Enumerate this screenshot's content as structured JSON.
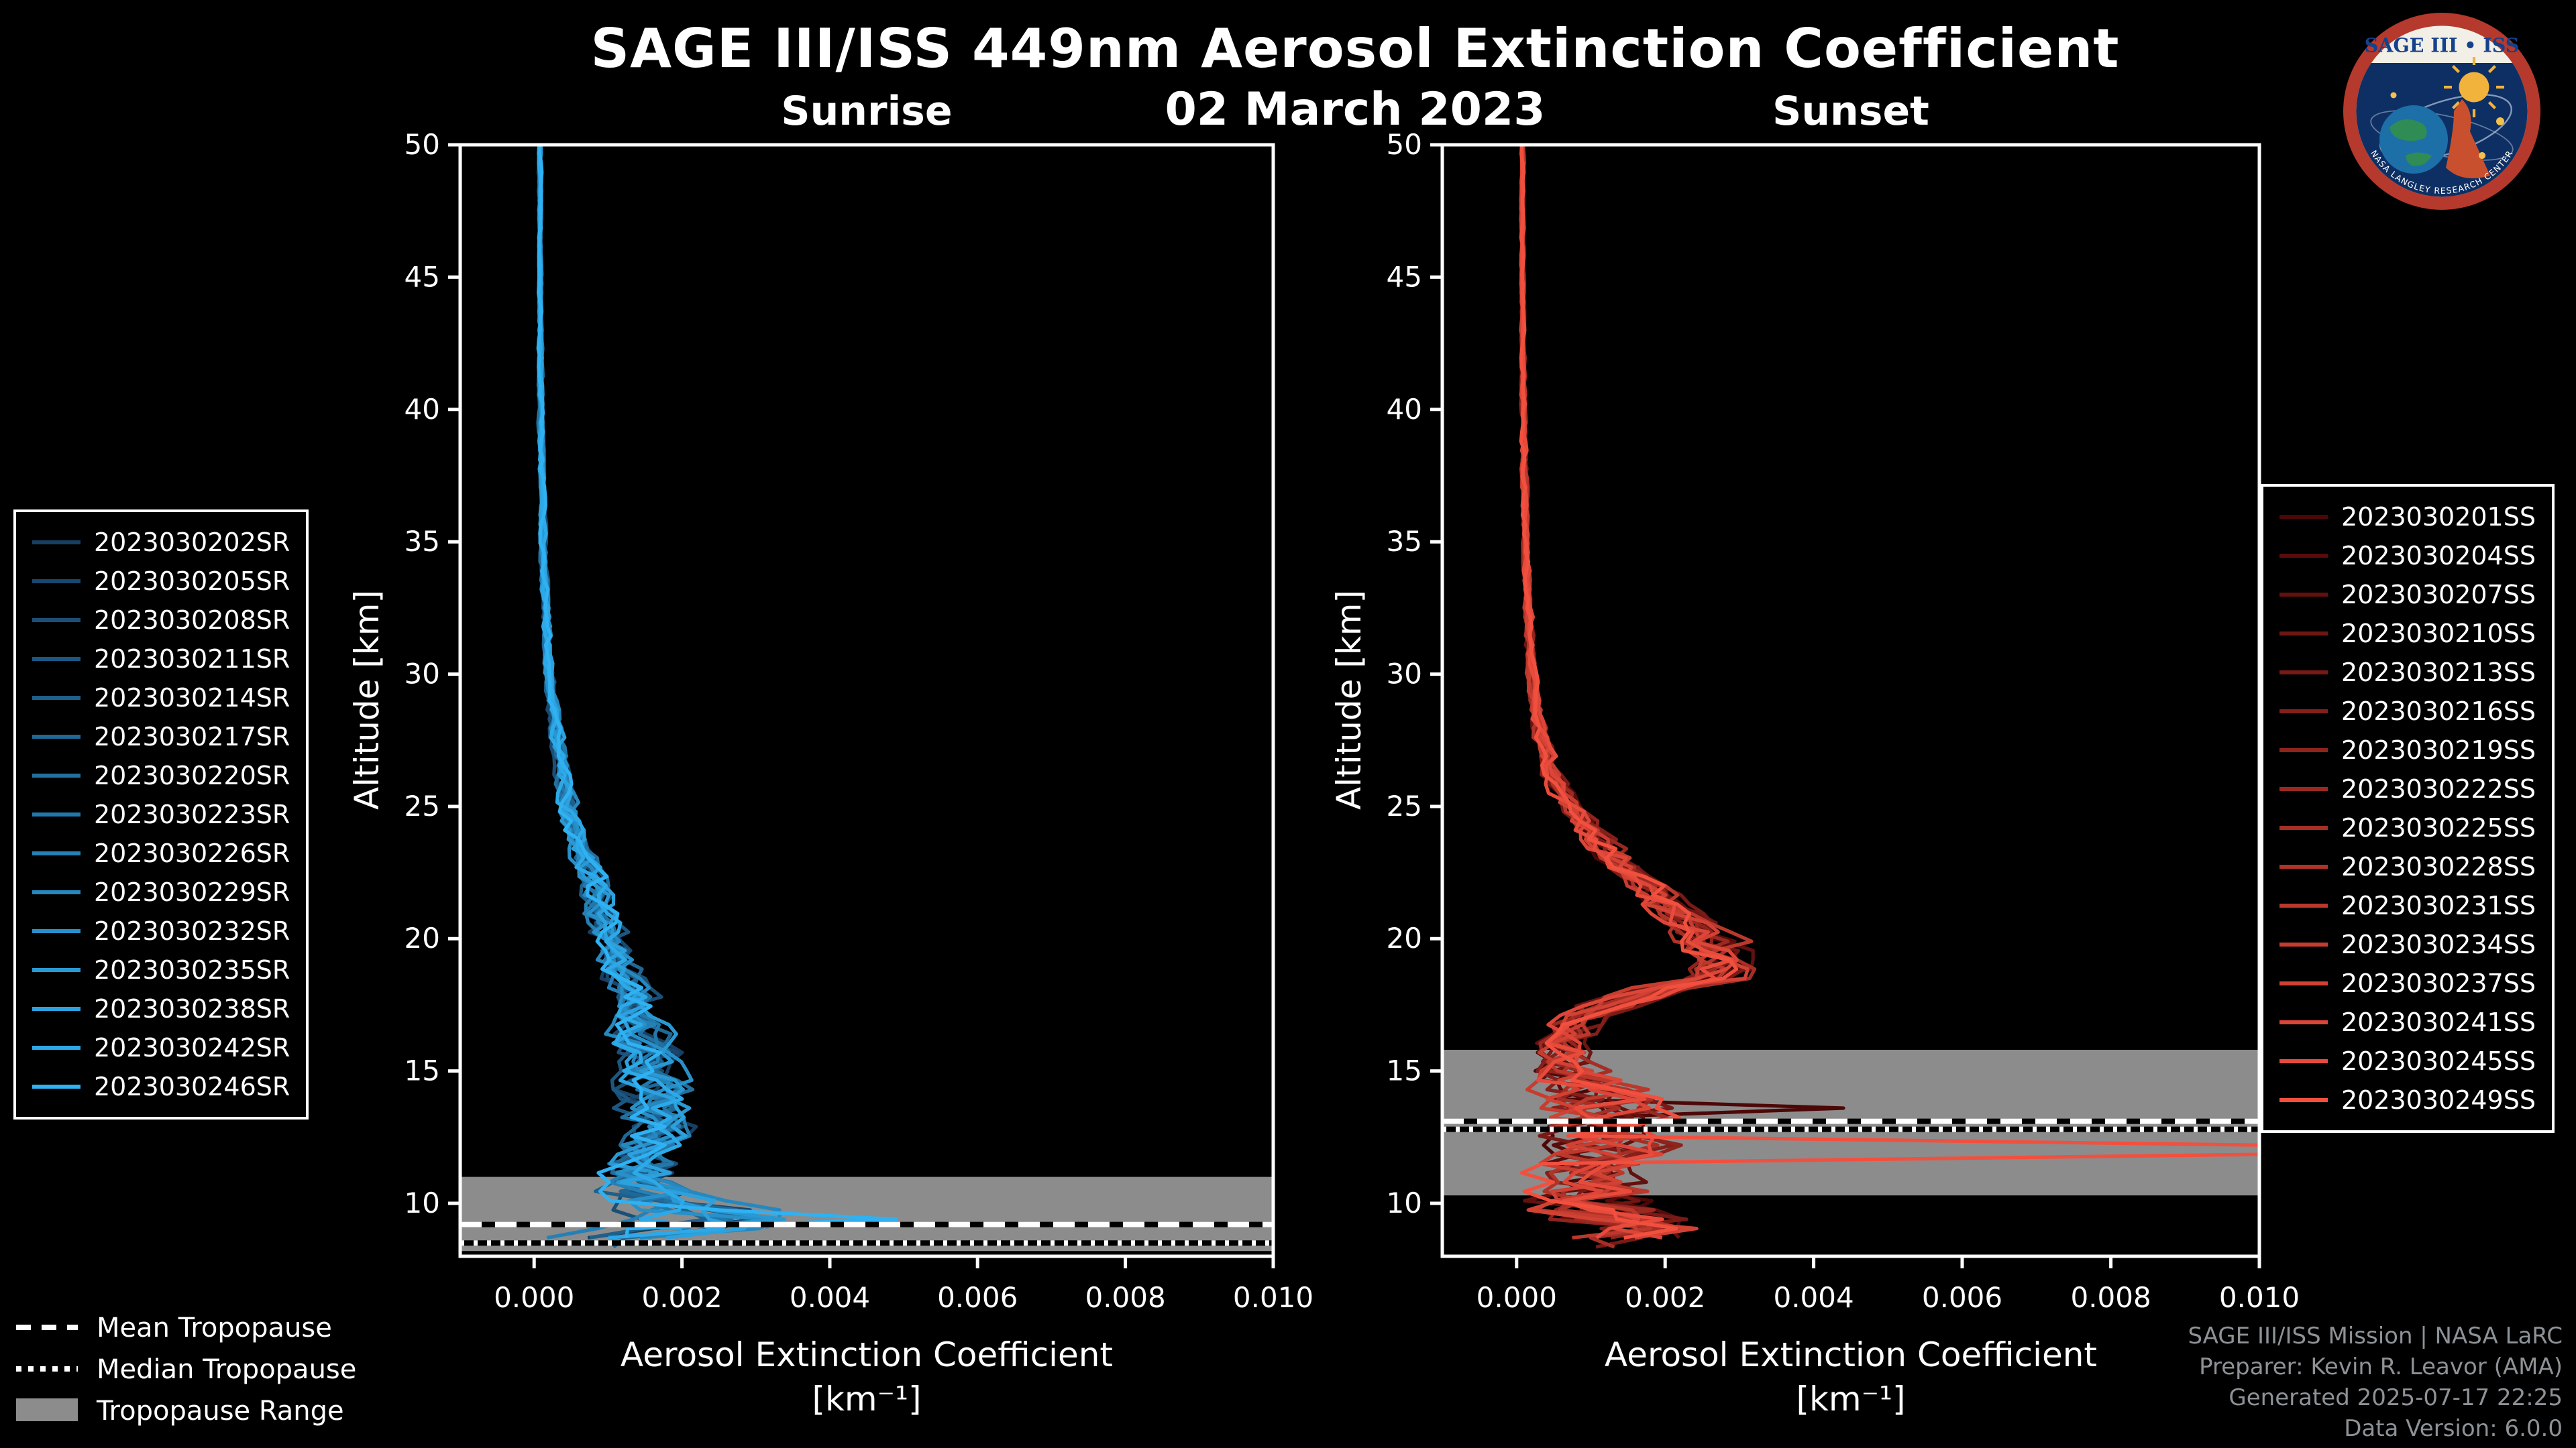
{
  "header": {
    "title": "SAGE III/ISS 449nm Aerosol Extinction Coefficient",
    "date": "02 March 2023"
  },
  "logo": {
    "title": "SAGE III • ISS",
    "ring_text": "NASA LANGLEY RESEARCH CENTER"
  },
  "overlay_legend": {
    "items": [
      {
        "label": "Mean Tropopause",
        "style": "dashed"
      },
      {
        "label": "Median Tropopause",
        "style": "dotted"
      },
      {
        "label": "Tropopause Range",
        "style": "filled"
      }
    ]
  },
  "credits": {
    "line1": "SAGE III/ISS Mission | NASA LaRC",
    "line2": "Preparer: Kevin R. Leavor (AMA)",
    "line3": "Generated 2025-07-17 22:25",
    "line4": "Data Version: 6.0.0"
  },
  "chart_data": [
    {
      "type": "line",
      "title": "Sunrise",
      "xlabel": "Aerosol Extinction Coefficient",
      "xlabel_units": "[km⁻¹]",
      "ylabel": "Altitude [km]",
      "xlim": [
        -0.001,
        0.01
      ],
      "ylim": [
        8,
        50
      ],
      "xtick_values": [
        0,
        0.002,
        0.004,
        0.006,
        0.008,
        0.01
      ],
      "xtick_labels": [
        "0.000",
        "0.002",
        "0.004",
        "0.006",
        "0.008",
        "0.010"
      ],
      "ytick_values": [
        10,
        15,
        20,
        25,
        30,
        35,
        40,
        45,
        50
      ],
      "legend_position": "left",
      "grid": false,
      "color_start": "#173f63",
      "color_end": "#2fb1f2",
      "series": [
        "2023030202SR",
        "2023030205SR",
        "2023030208SR",
        "2023030211SR",
        "2023030214SR",
        "2023030217SR",
        "2023030220SR",
        "2023030223SR",
        "2023030226SR",
        "2023030229SR",
        "2023030232SR",
        "2023030235SR",
        "2023030238SR",
        "2023030242SR",
        "2023030246SR"
      ],
      "profile": {
        "altitude": [
          50,
          45,
          40,
          35,
          30,
          28,
          26,
          24,
          22,
          20,
          18,
          16,
          15,
          14,
          13,
          12,
          11,
          10.5,
          10,
          9.5,
          9,
          8.7,
          8.3
        ],
        "extinction": [
          8e-05,
          8e-05,
          9e-05,
          0.00012,
          0.0002,
          0.00028,
          0.0004,
          0.00055,
          0.0008,
          0.001,
          0.0013,
          0.0015,
          0.0016,
          0.0016,
          0.0017,
          0.0016,
          0.0014,
          0.0015,
          0.0018,
          0.0027,
          0.0021,
          0.0012,
          0.0008
        ],
        "spread": [
          2e-05,
          2e-05,
          3e-05,
          4e-05,
          6e-05,
          8e-05,
          0.0001,
          0.00015,
          0.0002,
          0.00025,
          0.0003,
          0.0004,
          0.00042,
          0.00045,
          0.0005,
          0.0005,
          0.00055,
          0.0006,
          0.0009,
          0.0012,
          0.001,
          0.0006,
          0.0004
        ]
      },
      "spikes": [
        {
          "series_index": 14,
          "altitude": 9.35,
          "value": 0.0049,
          "width": 0.18
        }
      ],
      "tropopause": {
        "mean": 9.2,
        "median": 8.5,
        "range": [
          8.2,
          11.0
        ]
      }
    },
    {
      "type": "line",
      "title": "Sunset",
      "xlabel": "Aerosol Extinction Coefficient",
      "xlabel_units": "[km⁻¹]",
      "ylabel": "Altitude [km]",
      "xlim": [
        -0.001,
        0.01
      ],
      "ylim": [
        8,
        50
      ],
      "xtick_values": [
        0,
        0.002,
        0.004,
        0.006,
        0.008,
        0.01
      ],
      "xtick_labels": [
        "0.000",
        "0.002",
        "0.004",
        "0.006",
        "0.008",
        "0.010"
      ],
      "ytick_values": [
        10,
        15,
        20,
        25,
        30,
        35,
        40,
        45,
        50
      ],
      "legend_position": "right",
      "grid": false,
      "color_start": "#4d0707",
      "color_end": "#f2503f",
      "series": [
        "2023030201SS",
        "2023030204SS",
        "2023030207SS",
        "2023030210SS",
        "2023030213SS",
        "2023030216SS",
        "2023030219SS",
        "2023030222SS",
        "2023030225SS",
        "2023030228SS",
        "2023030231SS",
        "2023030234SS",
        "2023030237SS",
        "2023030241SS",
        "2023030245SS",
        "2023030249SS"
      ],
      "profile": {
        "altitude": [
          50,
          45,
          40,
          35,
          30,
          28,
          26,
          25,
          24,
          23,
          22,
          21,
          20,
          19,
          18.5,
          18,
          17,
          16,
          15,
          14,
          13.5,
          13,
          12,
          11,
          10,
          9,
          8.3
        ],
        "extinction": [
          8e-05,
          8e-05,
          9e-05,
          0.00012,
          0.0002,
          0.0003,
          0.0005,
          0.0007,
          0.001,
          0.0014,
          0.0017,
          0.0021,
          0.0026,
          0.0029,
          0.0026,
          0.0017,
          0.0008,
          0.0006,
          0.0008,
          0.0011,
          0.0013,
          0.0011,
          0.0014,
          0.0009,
          0.0011,
          0.0016,
          0.001
        ],
        "spread": [
          2e-05,
          2e-05,
          3e-05,
          4e-05,
          6e-05,
          9e-05,
          0.00013,
          0.00016,
          0.0002,
          0.00025,
          0.0003,
          0.00035,
          0.0004,
          0.00042,
          0.0004,
          0.00038,
          0.0003,
          0.0003,
          0.0005,
          0.0008,
          0.0009,
          0.0008,
          0.0009,
          0.0007,
          0.001,
          0.0012,
          0.0005
        ]
      },
      "spikes": [
        {
          "series_index": 0,
          "altitude": 13.55,
          "value": 0.0044,
          "width": 0.18
        },
        {
          "series_index": 15,
          "altitude": 12.05,
          "value": 0.02,
          "width": 0.3
        }
      ],
      "tropopause": {
        "mean": 13.1,
        "median": 12.8,
        "range": [
          10.3,
          15.8
        ]
      }
    }
  ]
}
